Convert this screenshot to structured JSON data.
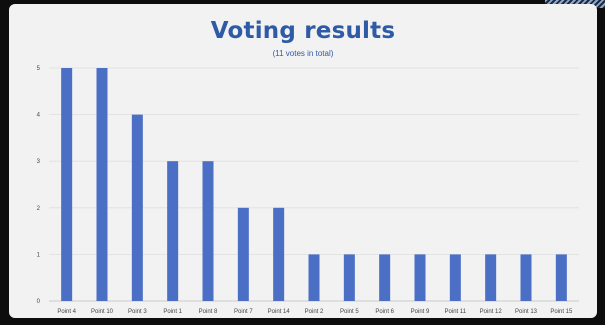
{
  "chart_data": {
    "type": "bar",
    "title": "Voting results",
    "subtitle": "(11 votes in total)",
    "categories": [
      "Point 4",
      "Point 10",
      "Point 3",
      "Point 1",
      "Point 8",
      "Point 7",
      "Point 14",
      "Point 2",
      "Point 5",
      "Point 6",
      "Point 9",
      "Point 11",
      "Point 12",
      "Point 13",
      "Point 15"
    ],
    "values": [
      5,
      5,
      4,
      3,
      3,
      2,
      2,
      1,
      1,
      1,
      1,
      1,
      1,
      1,
      1
    ],
    "yticks": [
      0,
      1,
      2,
      3,
      4,
      5
    ],
    "ylim": [
      0,
      5
    ],
    "xlabel": "",
    "ylabel": "",
    "grid": true,
    "bar_color": "#4a6fc4"
  }
}
